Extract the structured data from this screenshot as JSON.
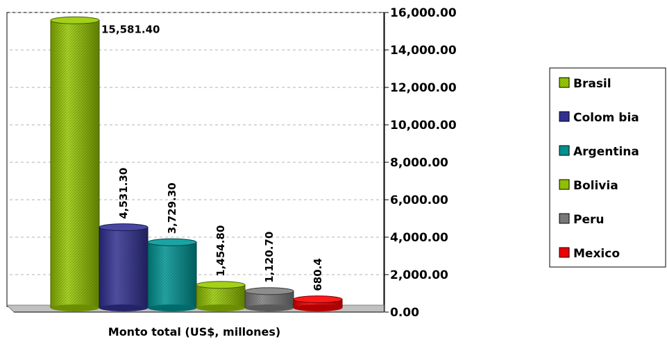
{
  "chart_data": {
    "type": "bar",
    "xlabel": "Monto total (US$, millones)",
    "ylabel": "",
    "ylim": [
      0,
      16000
    ],
    "yticks": [
      "0.00",
      "2,000.00",
      "4,000.00",
      "6,000.00",
      "8,000.00",
      "10,000.00",
      "12,000.00",
      "14,000.00",
      "16,000.00"
    ],
    "ytick_values": [
      0,
      2000,
      4000,
      6000,
      8000,
      10000,
      12000,
      14000,
      16000
    ],
    "y_axis_side": "right",
    "grid": true,
    "legend_position": "right",
    "series": [
      {
        "name": "Brasil",
        "value": 15581.4,
        "label": "15,581.40",
        "color": "#99cc00"
      },
      {
        "name": "Colombia",
        "value": 4531.3,
        "label": "4,531.30",
        "color": "#333399"
      },
      {
        "name": "Argentina",
        "value": 3729.3,
        "label": "3,729.30",
        "color": "#009999"
      },
      {
        "name": "Bolivia",
        "value": 1454.8,
        "label": "1,454.80",
        "color": "#99cc00"
      },
      {
        "name": "Peru",
        "value": 1120.7,
        "label": "1,120.70",
        "color": "#808080"
      },
      {
        "name": "Mexico",
        "value": 680.4,
        "label": "680.4",
        "color": "#ff0000"
      }
    ],
    "legend_labels": [
      "Brasil",
      "Colom bia",
      "Argentina",
      "Bolivia",
      "Peru",
      "Mexico"
    ]
  }
}
